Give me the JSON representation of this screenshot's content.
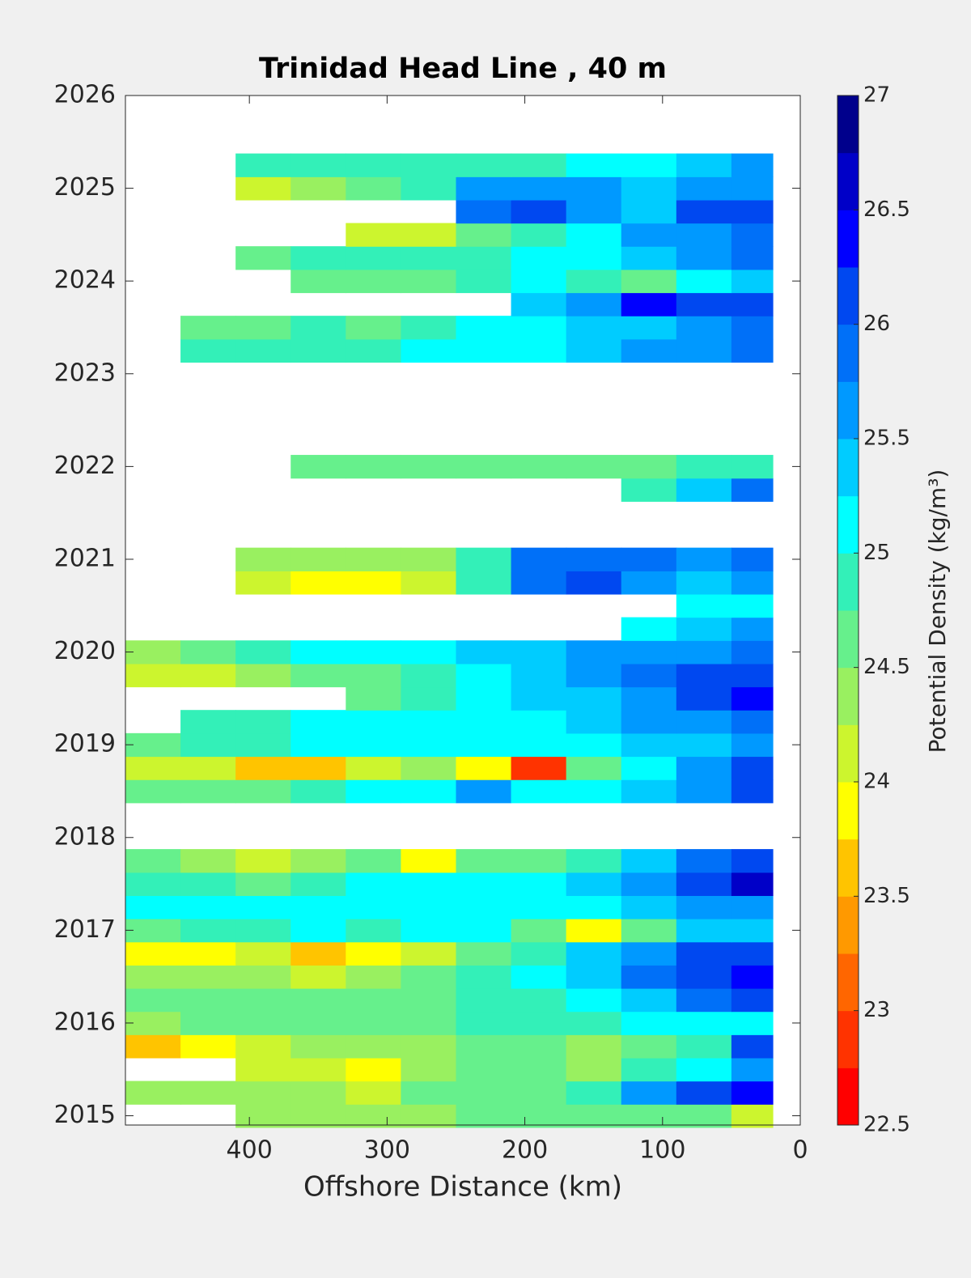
{
  "chart_data": {
    "type": "contourf",
    "title": "Trinidad Head Line , 40 m",
    "xlabel": "Offshore Distance (km)",
    "colorbar_label": "Potential Density (kg/m³)",
    "xlim": [
      490,
      0
    ],
    "xticks": [
      400,
      300,
      200,
      100,
      0
    ],
    "ylim": [
      2014.9,
      2026
    ],
    "yticks": [
      2015,
      2016,
      2017,
      2018,
      2019,
      2020,
      2021,
      2022,
      2023,
      2024,
      2025,
      2026
    ],
    "clim": [
      22.5,
      27
    ],
    "cticks": [
      22.5,
      23,
      23.5,
      24,
      24.5,
      25,
      25.5,
      26,
      26.5,
      27
    ],
    "colors": [
      "#ff0000",
      "#ff3300",
      "#ff6600",
      "#ff9900",
      "#ffc400",
      "#ffff00",
      "#ccf52e",
      "#99f060",
      "#66f08c",
      "#33f0b8",
      "#00ffff",
      "#00ccff",
      "#0099ff",
      "#0070f8",
      "#0048f0",
      "#0000ff",
      "#0000c8",
      "#00008c"
    ],
    "x": [
      470,
      430,
      390,
      350,
      310,
      270,
      230,
      190,
      150,
      110,
      70,
      30
    ],
    "y": [
      2015,
      2015.25,
      2015.5,
      2015.75,
      2016,
      2016.25,
      2016.5,
      2016.75,
      2017,
      2017.25,
      2017.5,
      2017.75,
      2018,
      2018.25,
      2018.5,
      2018.75,
      2019,
      2019.25,
      2019.5,
      2019.75,
      2020,
      2020.25,
      2020.5,
      2020.75,
      2021,
      2021.25,
      2021.5,
      2021.75,
      2022,
      2022.25,
      2022.5,
      2022.75,
      2023,
      2023.25,
      2023.5,
      2023.75,
      2024,
      2024.25,
      2024.5,
      2024.75,
      2025,
      2025.25
    ],
    "z": [
      [
        null,
        null,
        24.4,
        24.4,
        24.3,
        24.4,
        24.5,
        24.6,
        24.6,
        24.7,
        24.5,
        24.2
      ],
      [
        24.4,
        24.4,
        24.3,
        24.4,
        24.2,
        24.5,
        24.6,
        24.7,
        24.9,
        25.6,
        26.2,
        26.3
      ],
      [
        null,
        null,
        24.2,
        24.2,
        23.9,
        24.4,
        24.6,
        24.5,
        24.4,
        24.9,
        25.2,
        25.5
      ],
      [
        23.7,
        23.8,
        24.2,
        24.4,
        24.4,
        24.3,
        24.7,
        24.5,
        24.3,
        24.5,
        24.8,
        26.0
      ],
      [
        24.4,
        24.6,
        24.6,
        24.6,
        24.6,
        24.7,
        24.8,
        24.8,
        24.9,
        25.0,
        25.1,
        25.2
      ],
      [
        24.6,
        24.6,
        24.5,
        24.5,
        24.6,
        24.6,
        24.8,
        24.9,
        25.2,
        25.4,
        25.8,
        26.0
      ],
      [
        24.4,
        24.3,
        24.3,
        24.2,
        24.3,
        24.5,
        24.9,
        25.0,
        25.4,
        25.8,
        26.2,
        26.3
      ],
      [
        23.8,
        23.9,
        24.0,
        23.7,
        23.8,
        24.0,
        24.6,
        24.8,
        25.3,
        25.6,
        26.1,
        26.2
      ],
      [
        24.7,
        24.8,
        24.9,
        25.0,
        24.9,
        25.0,
        25.2,
        24.6,
        23.9,
        24.5,
        25.3,
        25.4
      ],
      [
        25.2,
        25.1,
        25.1,
        25.0,
        25.0,
        25.0,
        25.1,
        25.1,
        25.1,
        25.3,
        25.5,
        25.7
      ],
      [
        24.8,
        24.8,
        24.7,
        24.9,
        25.1,
        25.1,
        25.2,
        25.2,
        25.3,
        25.6,
        26.2,
        26.6
      ],
      [
        24.5,
        24.3,
        24.0,
        24.4,
        24.6,
        23.8,
        24.5,
        24.7,
        24.9,
        25.4,
        25.9,
        26.2
      ],
      [
        null,
        null,
        null,
        null,
        null,
        null,
        null,
        null,
        null,
        null,
        null,
        null
      ],
      [
        null,
        null,
        null,
        null,
        null,
        null,
        null,
        null,
        null,
        null,
        null,
        null
      ],
      [
        24.5,
        24.6,
        24.7,
        24.9,
        25.0,
        25.1,
        25.6,
        25.2,
        25.2,
        25.4,
        25.6,
        26.0
      ],
      [
        24.2,
        24.0,
        23.7,
        23.6,
        24.2,
        24.3,
        23.8,
        22.8,
        24.6,
        25.2,
        25.6,
        26.0
      ],
      [
        24.6,
        24.8,
        24.9,
        25.0,
        25.1,
        25.1,
        25.1,
        25.1,
        25.1,
        25.3,
        25.3,
        25.6
      ],
      [
        null,
        24.9,
        24.9,
        25.0,
        25.0,
        25.1,
        25.1,
        25.2,
        25.3,
        25.5,
        25.6,
        25.8
      ],
      [
        null,
        null,
        null,
        null,
        24.6,
        24.9,
        25.1,
        25.3,
        25.4,
        25.7,
        26.0,
        26.3
      ],
      [
        24.1,
        24.2,
        24.4,
        24.5,
        24.7,
        24.9,
        25.2,
        25.3,
        25.5,
        25.8,
        26.0,
        26.1
      ],
      [
        24.4,
        24.6,
        24.9,
        25.1,
        25.1,
        25.2,
        25.3,
        25.4,
        25.5,
        25.6,
        25.7,
        25.8
      ],
      [
        null,
        null,
        null,
        null,
        null,
        null,
        null,
        null,
        null,
        25.2,
        25.3,
        25.5
      ],
      [
        null,
        null,
        null,
        null,
        null,
        null,
        null,
        null,
        null,
        null,
        25.1,
        25.2
      ],
      [
        null,
        null,
        24.0,
        23.8,
        23.8,
        24.1,
        24.8,
        25.8,
        26.1,
        25.6,
        25.4,
        25.5
      ],
      [
        null,
        null,
        24.3,
        24.4,
        24.4,
        24.4,
        24.9,
        25.8,
        25.8,
        25.9,
        25.7,
        25.8
      ],
      [
        null,
        null,
        null,
        null,
        null,
        null,
        null,
        null,
        null,
        null,
        null,
        null
      ],
      [
        null,
        null,
        null,
        null,
        null,
        null,
        null,
        null,
        null,
        null,
        null,
        null
      ],
      [
        null,
        null,
        null,
        null,
        null,
        null,
        null,
        null,
        null,
        24.9,
        25.3,
        25.8
      ],
      [
        null,
        null,
        null,
        24.5,
        24.6,
        24.6,
        24.5,
        24.6,
        24.6,
        24.7,
        24.8,
        24.8
      ],
      [
        null,
        null,
        null,
        null,
        null,
        null,
        null,
        null,
        null,
        null,
        null,
        null
      ],
      [
        null,
        null,
        null,
        null,
        null,
        null,
        null,
        null,
        null,
        null,
        null,
        null
      ],
      [
        null,
        null,
        null,
        null,
        null,
        null,
        null,
        null,
        null,
        null,
        null,
        null
      ],
      [
        null,
        null,
        null,
        null,
        null,
        null,
        null,
        null,
        null,
        null,
        null,
        null
      ],
      [
        null,
        24.8,
        24.8,
        24.9,
        24.9,
        25.0,
        25.1,
        25.1,
        25.3,
        25.6,
        25.5,
        25.8
      ],
      [
        null,
        24.7,
        24.7,
        24.8,
        24.6,
        24.9,
        25.0,
        25.2,
        25.4,
        25.4,
        25.6,
        25.9
      ],
      [
        null,
        null,
        null,
        null,
        null,
        null,
        null,
        25.4,
        25.5,
        26.4,
        26.2,
        26.2
      ],
      [
        null,
        null,
        null,
        24.7,
        24.7,
        24.7,
        24.9,
        25.1,
        24.8,
        24.7,
        25.0,
        25.4
      ],
      [
        null,
        null,
        24.7,
        24.8,
        24.9,
        24.8,
        24.9,
        25.0,
        25.1,
        25.3,
        25.6,
        25.9
      ],
      [
        null,
        null,
        null,
        null,
        24.2,
        24.1,
        24.5,
        24.9,
        25.2,
        25.6,
        25.7,
        25.9
      ],
      [
        null,
        null,
        null,
        null,
        null,
        null,
        25.9,
        26.0,
        25.6,
        25.3,
        26.1,
        26.0
      ],
      [
        null,
        null,
        24.1,
        24.4,
        24.6,
        24.9,
        25.5,
        25.7,
        25.5,
        25.4,
        25.6,
        25.7
      ],
      [
        null,
        null,
        24.8,
        24.9,
        24.9,
        24.9,
        24.9,
        24.9,
        25.0,
        25.1,
        25.3,
        25.6
      ]
    ]
  }
}
